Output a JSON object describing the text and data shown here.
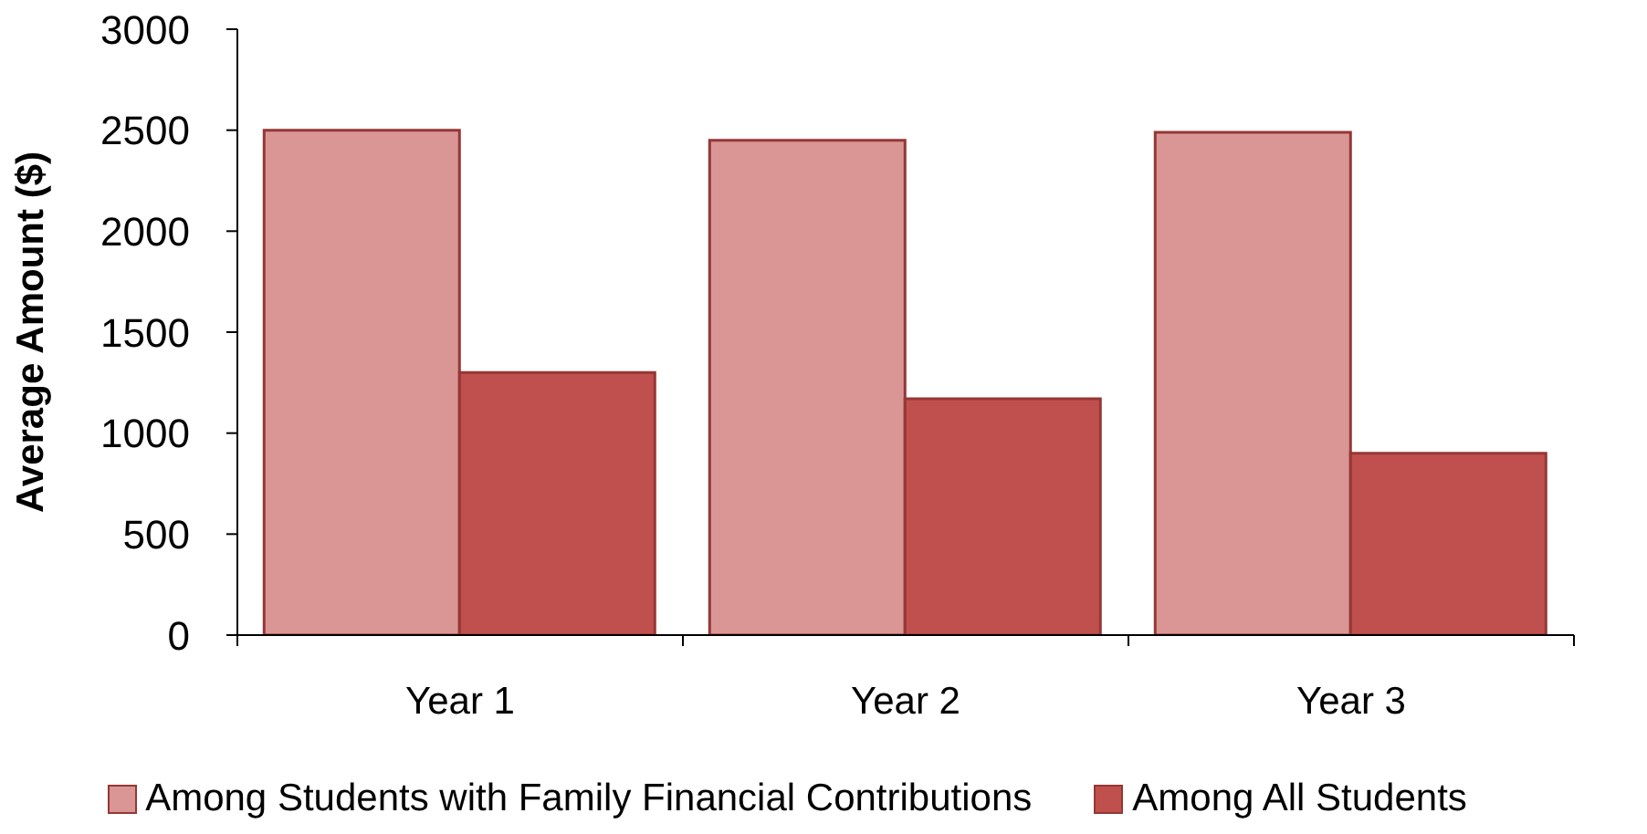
{
  "chart_data": {
    "type": "bar",
    "ylabel": "Average Amount ($)",
    "categories": [
      "Year 1",
      "Year 2",
      "Year 3"
    ],
    "series": [
      {
        "name": "Among Students with Family Financial Contributions",
        "color": "#d99694",
        "values": [
          2500,
          2450,
          2490
        ]
      },
      {
        "name": "Among All Students",
        "color": "#c0504d",
        "values": [
          1300,
          1170,
          900
        ]
      }
    ],
    "ylim": [
      0,
      3000
    ],
    "yticks": [
      0,
      500,
      1000,
      1500,
      2000,
      2500,
      3000
    ],
    "legend": "bottom"
  }
}
